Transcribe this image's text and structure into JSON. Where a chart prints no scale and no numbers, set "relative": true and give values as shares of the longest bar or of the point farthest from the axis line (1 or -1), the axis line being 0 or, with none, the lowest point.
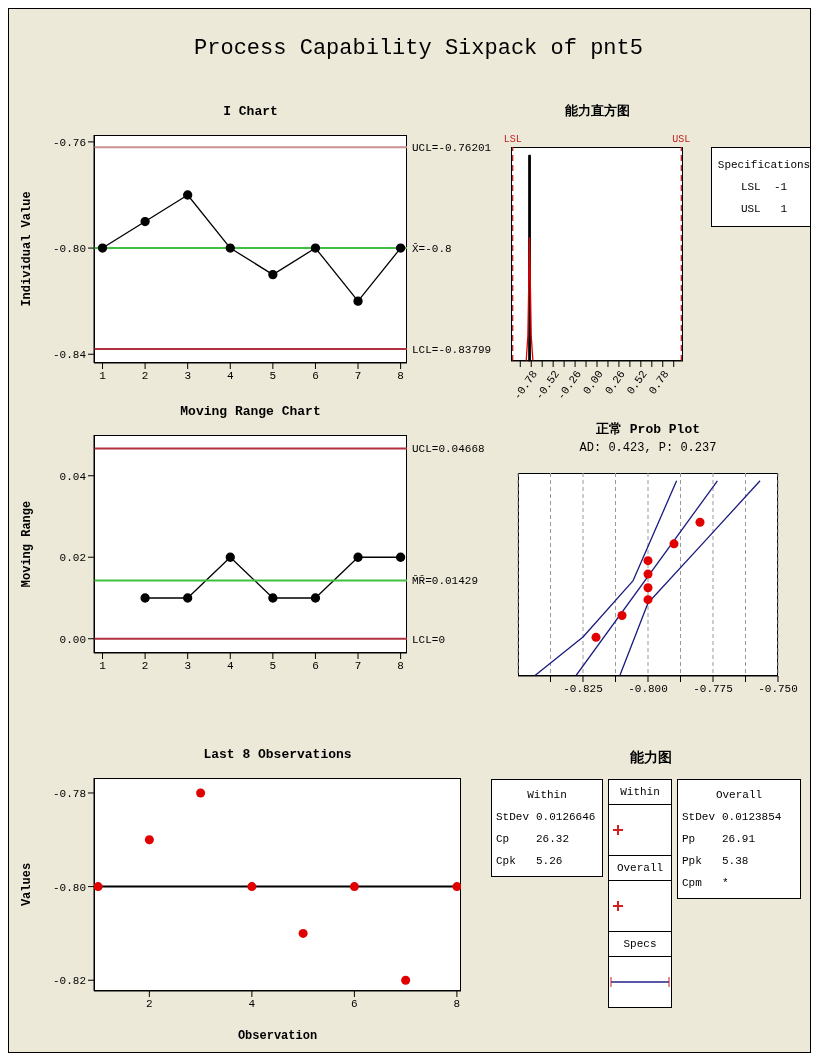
{
  "chart_data": [
    {
      "type": "other",
      "title": "Process Capability Sixpack of pnt5"
    },
    {
      "type": "line",
      "title": "I Chart",
      "ylabel": "Individual Value",
      "x": [
        1,
        2,
        3,
        4,
        5,
        6,
        7,
        8
      ],
      "values": [
        -0.8,
        -0.79,
        -0.78,
        -0.8,
        -0.81,
        -0.8,
        -0.82,
        -0.8
      ],
      "color": "#000000",
      "marker": "circle",
      "xlim": [
        0.8,
        8.15
      ],
      "xticks": [
        1,
        2,
        3,
        4,
        5,
        6,
        7,
        8
      ],
      "ylim": [
        -0.8433,
        -0.7574
      ],
      "yticks": [
        {
          "value": -0.84,
          "label": "-0.84"
        },
        {
          "value": -0.8,
          "label": "-0.80"
        },
        {
          "value": -0.76,
          "label": "-0.76"
        }
      ],
      "ref_lines": [
        {
          "axis": "y",
          "value": -0.76201,
          "label": "UCL=-0.76201",
          "color": "#c89090"
        },
        {
          "axis": "y",
          "value": -0.8,
          "label": "X̄=-0.8",
          "color": "#40c040"
        },
        {
          "axis": "y",
          "value": -0.83799,
          "label": "LCL=-0.83799",
          "color": "#b03040"
        }
      ]
    },
    {
      "type": "histogram",
      "title": "能力直方图",
      "bins": [
        -0.81,
        -0.79
      ],
      "values": [
        1
      ],
      "color": "#000000",
      "relative": true,
      "series": [
        {
          "type": "line",
          "color": "#e00000",
          "marker": "none",
          "x": [
            -0.84,
            -0.82,
            -0.8,
            -0.78,
            -0.76
          ],
          "values": [
            0,
            0.12,
            0.6,
            0.12,
            0
          ]
        }
      ],
      "xlim": [
        -1.02,
        1.02
      ],
      "xticks": [
        {
          "value": -0.91,
          "label": null
        },
        {
          "value": -0.78,
          "label": "-0.78"
        },
        {
          "value": -0.65,
          "label": null
        },
        {
          "value": -0.52,
          "label": "-0.52"
        },
        {
          "value": -0.39,
          "label": null
        },
        {
          "value": -0.26,
          "label": "-0.26"
        },
        {
          "value": -0.13,
          "label": null
        },
        {
          "value": 0,
          "label": "0.00"
        },
        {
          "value": 0.13,
          "label": null
        },
        {
          "value": 0.26,
          "label": "0.26"
        },
        {
          "value": 0.39,
          "label": null
        },
        {
          "value": 0.52,
          "label": "0.52"
        },
        {
          "value": 0.65,
          "label": null
        },
        {
          "value": 0.78,
          "label": "0.78"
        },
        {
          "value": 0.91,
          "label": null
        }
      ],
      "ref_lines": [
        {
          "axis": "x",
          "value": -1,
          "label": "LSL",
          "color": "#c02020",
          "line_style": "dashed"
        },
        {
          "axis": "x",
          "value": 1,
          "label": "USL",
          "color": "#c02020",
          "line_style": "dashed"
        }
      ],
      "annotations": [
        "Specifications",
        "LSL  -1",
        "USL   1"
      ]
    },
    {
      "type": "line",
      "title": "Moving Range Chart",
      "ylabel": "Moving Range",
      "x": [
        2,
        3,
        4,
        5,
        6,
        7,
        8
      ],
      "values": [
        0.01,
        0.01,
        0.02,
        0.01,
        0.01,
        0.02,
        0.02
      ],
      "color": "#000000",
      "marker": "circle",
      "xlim": [
        0.8,
        8.15
      ],
      "xticks": [
        1,
        2,
        3,
        4,
        5,
        6,
        7,
        8
      ],
      "ylim": [
        -0.0035,
        0.05
      ],
      "yticks": [
        {
          "value": 0,
          "label": "0.00"
        },
        {
          "value": 0.02,
          "label": "0.02"
        },
        {
          "value": 0.04,
          "label": "0.04"
        }
      ],
      "ref_lines": [
        {
          "axis": "y",
          "value": 0.04668,
          "label": "UCL=0.04668",
          "color": "#b03040"
        },
        {
          "axis": "y",
          "value": 0.01429,
          "label": "M̄R̄=0.01429",
          "color": "#40c040"
        },
        {
          "axis": "y",
          "value": 0,
          "label": "LCL=0",
          "color": "#b03040"
        }
      ]
    },
    {
      "type": "scatter",
      "title": "正常 Prob Plot",
      "subtitle": "AD: 0.423, P: 0.237",
      "relative": true,
      "marker": "circle",
      "grid": "x",
      "xlim": [
        -0.85,
        -0.75
      ],
      "xticks": [
        {
          "value": -0.8375,
          "label": null
        },
        {
          "value": -0.825,
          "label": "-0.825"
        },
        {
          "value": -0.8125,
          "label": null
        },
        {
          "value": -0.8,
          "label": "-0.800"
        },
        {
          "value": -0.7875,
          "label": null
        },
        {
          "value": -0.775,
          "label": "-0.775"
        },
        {
          "value": -0.7625,
          "label": null
        },
        {
          "value": -0.75,
          "label": "-0.750"
        }
      ],
      "series": [
        {
          "type": "line",
          "color": "#1a1a80",
          "marker": "none",
          "x": [
            -0.8437,
            -0.825,
            -0.8058,
            -0.789
          ],
          "values": [
            0,
            0.2,
            0.487,
            1
          ]
        },
        {
          "type": "line",
          "color": "#1a1a80",
          "marker": "none",
          "x": [
            -0.8278,
            -0.7733
          ],
          "values": [
            0,
            1
          ]
        },
        {
          "type": "line",
          "color": "#1a1a80",
          "marker": "none",
          "x": [
            -0.8109,
            -0.8,
            -0.7782,
            -0.7569
          ],
          "values": [
            0,
            0.374,
            0.69,
            1
          ]
        },
        {
          "type": "scatter",
          "color": "#e00000",
          "x": [
            -0.82,
            -0.81,
            -0.8,
            -0.8,
            -0.8,
            -0.8,
            -0.79,
            -0.78
          ],
          "values": [
            0.198,
            0.31,
            0.391,
            0.452,
            0.522,
            0.591,
            0.677,
            0.788
          ]
        }
      ]
    },
    {
      "type": "scatter",
      "title": "Last 8 Observations",
      "xlabel": "Observation",
      "ylabel": "Values",
      "x": [
        1,
        2,
        3,
        4,
        5,
        6,
        7,
        8
      ],
      "values": [
        -0.8,
        -0.79,
        -0.78,
        -0.8,
        -0.81,
        -0.8,
        -0.82,
        -0.8
      ],
      "color": "#e00000",
      "marker": "circle",
      "xlim": [
        0.92,
        8.08
      ],
      "xticks": [
        2,
        4,
        6,
        8
      ],
      "ylim": [
        -0.8223,
        -0.7768
      ],
      "yticks": [
        {
          "value": -0.82,
          "label": "-0.82"
        },
        {
          "value": -0.8,
          "label": "-0.80"
        },
        {
          "value": -0.78,
          "label": "-0.78"
        }
      ],
      "ref_lines": [
        {
          "axis": "y",
          "value": -0.8,
          "label": null,
          "color": "#000000"
        }
      ]
    },
    {
      "type": "other",
      "title": "能力图",
      "annotations": [
        "Within",
        "StDev",
        "0.0126646",
        "Cp",
        "26.32",
        "Cpk",
        "5.26",
        "Within",
        "Overall",
        "Specs",
        "Overall",
        "StDev",
        "0.0123854",
        "Pp",
        "26.91",
        "Ppk",
        "5.38",
        "Cpm",
        "*"
      ]
    }
  ]
}
